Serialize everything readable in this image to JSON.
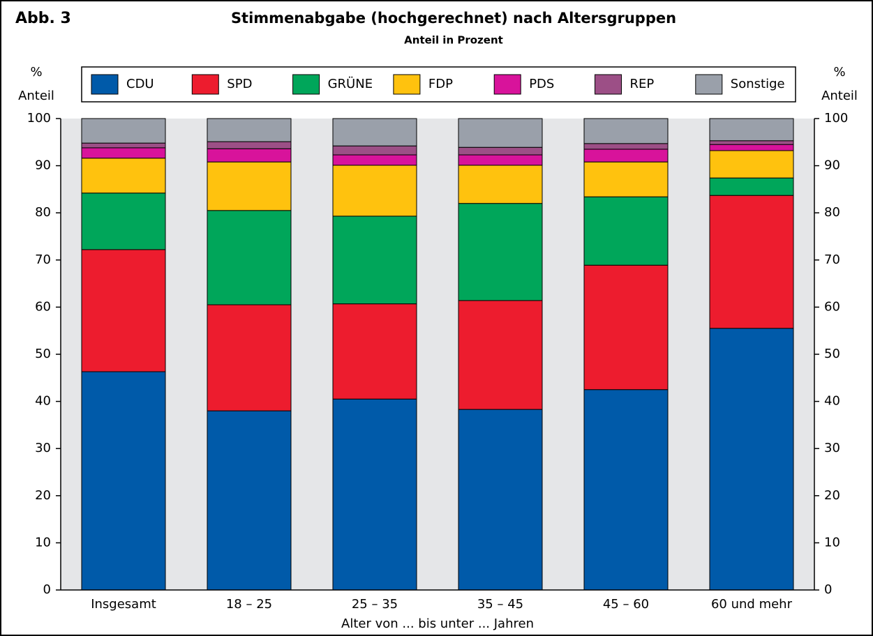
{
  "chart_data": {
    "type": "stacked_bar",
    "figure_label": "Abb. 3",
    "title": "Stimmenabgabe (hochgerechnet) nach Altersgruppen",
    "subtitle": "Anteil in Prozent",
    "ylabel_lines": [
      "%",
      "Anteil"
    ],
    "xlabel": "Alter von ... bis unter ... Jahren",
    "categories": [
      "Insgesamt",
      "18 – 25",
      "25 – 35",
      "35 – 45",
      "45 –  60",
      "60 und mehr"
    ],
    "series": [
      {
        "name": "CDU",
        "color": "#005aa9",
        "values": [
          46.3,
          38.0,
          40.5,
          38.3,
          42.5,
          55.5
        ]
      },
      {
        "name": "SPD",
        "color": "#ed1c2e",
        "values": [
          25.9,
          22.5,
          20.2,
          23.1,
          26.4,
          28.2
        ]
      },
      {
        "name": "GRÜNE",
        "color": "#00a65a",
        "values": [
          12.0,
          20.0,
          18.6,
          20.6,
          14.5,
          3.7
        ]
      },
      {
        "name": "FDP",
        "color": "#ffc20e",
        "values": [
          7.4,
          10.3,
          10.8,
          8.1,
          7.4,
          5.8
        ]
      },
      {
        "name": "PDS",
        "color": "#d8139b",
        "values": [
          2.2,
          2.8,
          2.2,
          2.2,
          2.7,
          1.3
        ]
      },
      {
        "name": "REP",
        "color": "#9c4f86",
        "values": [
          1.0,
          1.5,
          1.9,
          1.6,
          1.2,
          0.8
        ]
      },
      {
        "name": "Sonstige",
        "color": "#9aa0aa",
        "values": [
          5.2,
          4.9,
          5.8,
          6.1,
          5.3,
          4.7
        ]
      }
    ],
    "ylim": [
      0,
      100
    ],
    "yticks": [
      0,
      10,
      20,
      30,
      40,
      50,
      60,
      70,
      80,
      90,
      100
    ],
    "plot_background": "#e5e6e8"
  }
}
